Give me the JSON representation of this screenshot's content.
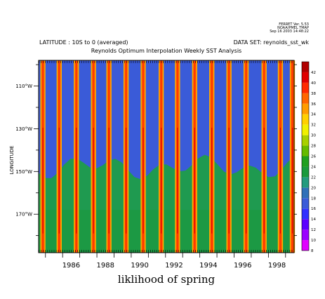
{
  "stamp_lines": [
    "FERRET Ver. 5.53",
    "NOAA/PMEL TMAP",
    "Sep 16 2003 14:48:22"
  ],
  "chart_data": {
    "type": "heatmap",
    "header_left": "LATITUDE : 10S to 0 (averaged)",
    "header_right": "DATA SET: reynolds_sst_wk",
    "title": "Reynolds Optimum Interpolation Weekly SST Analysis",
    "xlabel": "liklihood of spring",
    "ylabel": "LONGITUDE",
    "x_range": [
      1984.6,
      1999.5
    ],
    "x_tick_labels": [
      "1986",
      "1988",
      "1990",
      "1992",
      "1994",
      "1996",
      "1998"
    ],
    "x_tick_values": [
      1986,
      1988,
      1990,
      1992,
      1994,
      1996,
      1998
    ],
    "y_range_deg_west": [
      98,
      188
    ],
    "y_tick_labels": [
      "110°W",
      "130°W",
      "150°W",
      "170°W"
    ],
    "y_tick_values": [
      110,
      130,
      150,
      170
    ],
    "colorbar_levels": [
      8,
      10,
      12,
      14,
      16,
      18,
      20,
      22,
      24,
      26,
      28,
      30,
      32,
      34,
      36,
      38,
      40,
      42
    ],
    "colorbar_colors": [
      "#e000ff",
      "#9a00ff",
      "#5a00ff",
      "#3030ff",
      "#3a5bd8",
      "#3070b8",
      "#249b7e",
      "#1a9a3c",
      "#20a020",
      "#66bb00",
      "#a8d000",
      "#f0f000",
      "#ffd000",
      "#ff9c00",
      "#ff6600",
      "#ff2a00",
      "#e00000",
      "#b00000"
    ],
    "background_color": "#3a5bd8",
    "lower_region_color": "#1f9a50",
    "stripe_centers": [
      1984.85,
      1985.8,
      1986.8,
      1987.8,
      1988.7,
      1989.7,
      1990.7,
      1991.75,
      1992.7,
      1993.7,
      1994.7,
      1995.7,
      1996.7,
      1997.75,
      1998.7,
      1999.4
    ],
    "stripe_width_years": 0.3,
    "stripe_colors": [
      "#ffb000",
      "#ff7000",
      "#ff3a00",
      "#e00000"
    ]
  }
}
